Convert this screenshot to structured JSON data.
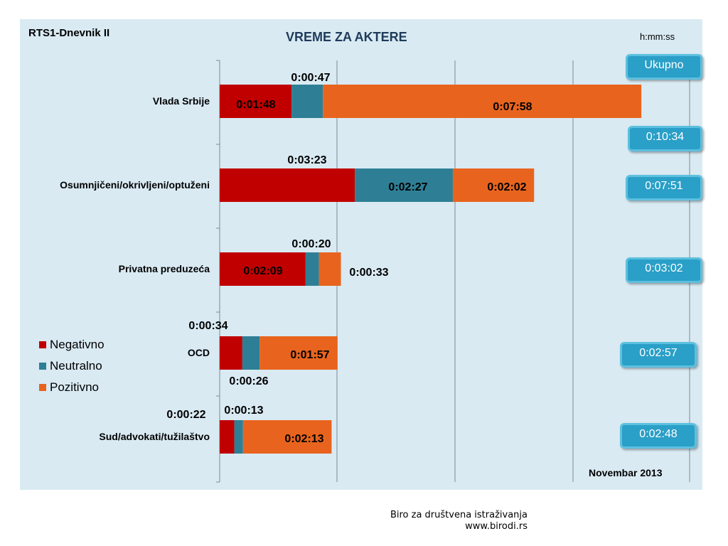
{
  "header": {
    "channel": "RTS1-Dnevnik II",
    "unit": "h:mm:ss",
    "month": "Novembar 2013"
  },
  "footer": {
    "org": "Biro za društvena istraživanja",
    "url": "www.birodi.rs"
  },
  "colors": {
    "negativno": "#c00000",
    "neutralno": "#2e7f95",
    "pozitivno": "#e8641e",
    "panel": "#d9eaf3",
    "box": "#2a9fc7"
  },
  "chart_data": {
    "type": "bar",
    "orientation": "horizontal",
    "stacked": true,
    "title": "VREME ZA AKTERE",
    "unit": "h:mm:ss",
    "categories": [
      "Vlada Srbije",
      "Osumnjičeni/okrivljeni/optuženi",
      "Privatna preduzeća",
      "OCD",
      "Sud/advokati/tužilaštvo"
    ],
    "series": [
      {
        "name": "Negativno",
        "values": [
          "0:01:48",
          "0:03:23",
          "0:02:09",
          "0:00:34",
          "0:00:22"
        ],
        "seconds": [
          108,
          203,
          129,
          34,
          22
        ]
      },
      {
        "name": "Neutralno",
        "values": [
          "0:00:47",
          "0:02:27",
          "0:00:20",
          "0:00:26",
          "0:00:13"
        ],
        "seconds": [
          47,
          147,
          20,
          26,
          13
        ]
      },
      {
        "name": "Pozitivno",
        "values": [
          "0:07:58",
          "0:02:02",
          "0:00:33",
          "0:01:57",
          "0:02:13"
        ],
        "seconds": [
          478,
          122,
          33,
          117,
          133
        ]
      }
    ],
    "totals_label": "Ukupno",
    "totals": [
      "0:10:34",
      "0:07:51",
      "0:03:02",
      "0:02:57",
      "0:02:48"
    ],
    "legend": [
      "Negativno",
      "Neutralno",
      "Pozitivno"
    ],
    "legend_position": "left",
    "grid": true
  }
}
